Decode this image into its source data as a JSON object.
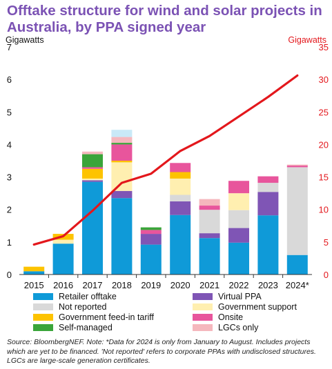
{
  "title": "Offtake structure for wind and solar projects in Australia, by PPA signed year",
  "source": "Source: BloombergNEF. Note: *Data for 2024 is only from January to August. Includes projects which are yet to be financed. 'Not reported' refers to corporate PPAs with undisclosed structures. LGCs are large-scale generation certificates.",
  "chart_data": {
    "type": "bar",
    "stacked": true,
    "ylabel": "Gigawatts",
    "y2label": "Gigawatts",
    "ylim": [
      0,
      7
    ],
    "y2lim": [
      0,
      35
    ],
    "yticks": [
      0,
      1,
      2,
      3,
      4,
      5,
      6,
      7
    ],
    "y2ticks": [
      0,
      5,
      10,
      15,
      20,
      25,
      30,
      35
    ],
    "grid": false,
    "legend_position": "bottom",
    "categories": [
      "2015",
      "2016",
      "2017",
      "2018",
      "2019",
      "2020",
      "2021",
      "2022",
      "2023",
      "2024*"
    ],
    "series": [
      {
        "name": "Retailer offtake",
        "color": "#0f9ad8",
        "values": [
          0.1,
          0.95,
          2.85,
          2.35,
          0.92,
          1.83,
          1.12,
          0.98,
          1.82,
          0.6
        ]
      },
      {
        "name": "Virtual PPA",
        "color": "#7f55b5",
        "values": [
          0,
          0,
          0.05,
          0.22,
          0.33,
          0.42,
          0.15,
          0.45,
          0.72,
          0
        ]
      },
      {
        "name": "Not reported",
        "color": "#d9d9d9",
        "values": [
          0,
          0,
          0,
          0,
          0,
          0.2,
          0.72,
          0.55,
          0.28,
          2.7
        ]
      },
      {
        "name": "Government support",
        "color": "#ffefb0",
        "values": [
          0,
          0.12,
          0.05,
          0.88,
          0,
          0.5,
          0,
          0.52,
          0,
          0
        ]
      },
      {
        "name": "Government feed-in tariff",
        "color": "#fdc300",
        "values": [
          0.14,
          0.18,
          0.3,
          0.05,
          0,
          0.2,
          0,
          0,
          0,
          0
        ]
      },
      {
        "name": "Onsite",
        "color": "#e8559c",
        "values": [
          0,
          0,
          0.05,
          0.5,
          0.12,
          0.28,
          0.13,
          0.38,
          0.2,
          0.05
        ]
      },
      {
        "name": "Self-managed",
        "color": "#3aa53a",
        "values": [
          0,
          0,
          0.4,
          0.05,
          0.08,
          0,
          0,
          0,
          0,
          0
        ]
      },
      {
        "name": "LGCs only",
        "color": "#f5b7bd",
        "values": [
          0,
          0,
          0.08,
          0.18,
          0,
          0,
          0.2,
          0,
          0,
          0.03
        ]
      },
      {
        "name": "",
        "color": "#c9e9f7",
        "values": [
          0,
          0,
          0,
          0.22,
          0,
          0,
          0,
          0,
          0,
          0
        ]
      }
    ],
    "line_series": {
      "axis": "right",
      "color": "#e3171c",
      "values": [
        4.6,
        5.9,
        9.8,
        14.1,
        15.5,
        19.0,
        21.3,
        24.3,
        27.3,
        30.6
      ]
    }
  }
}
